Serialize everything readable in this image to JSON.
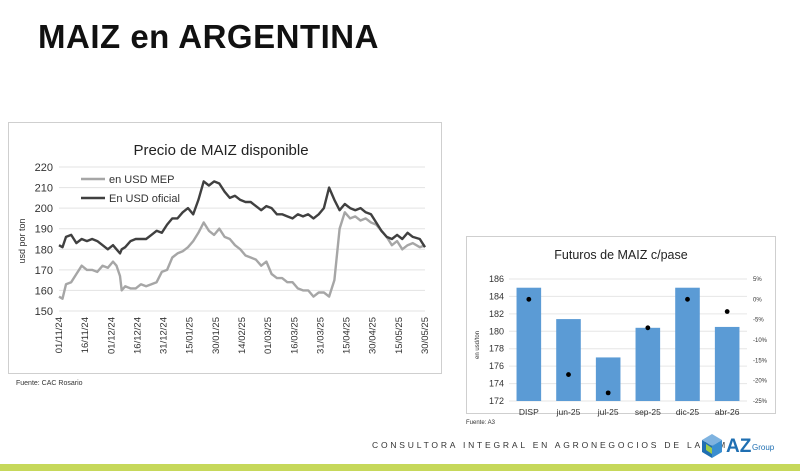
{
  "page": {
    "title": "MAIZ en ARGENTINA",
    "footer": "CONSULTORA INTEGRAL EN AGRONEGOCIOS DE LATAM",
    "logo_text": "AZ",
    "logo_sub": "Group",
    "accent_color": "#c6d85a",
    "logo_color": "#1f6fb2"
  },
  "chart_data": [
    {
      "type": "line",
      "title": "Precio de MAIZ disponible",
      "ylabel": "usd por ton",
      "ylim": [
        150,
        220
      ],
      "yticks": [
        150,
        160,
        170,
        180,
        190,
        200,
        210,
        220
      ],
      "xlabels": [
        "01/11/24",
        "16/11/24",
        "01/12/24",
        "16/12/24",
        "31/12/24",
        "15/01/25",
        "30/01/25",
        "14/02/25",
        "01/03/25",
        "16/03/25",
        "31/03/25",
        "15/04/25",
        "30/04/25",
        "15/05/25",
        "30/05/25"
      ],
      "x_start": "2024-11-01",
      "x_end": "2025-05-30",
      "grid": true,
      "legend": "top-left",
      "source": "Fuente: CAC Rosario",
      "series": [
        {
          "name": "en USD MEP",
          "color": "#a6a6a6",
          "points": [
            [
              "2024-11-01",
              157
            ],
            [
              "2024-11-03",
              156
            ],
            [
              "2024-11-05",
              163
            ],
            [
              "2024-11-08",
              164
            ],
            [
              "2024-11-11",
              168
            ],
            [
              "2024-11-14",
              172
            ],
            [
              "2024-11-17",
              170
            ],
            [
              "2024-11-20",
              170
            ],
            [
              "2024-11-23",
              169
            ],
            [
              "2024-11-26",
              172
            ],
            [
              "2024-11-29",
              171
            ],
            [
              "2024-12-02",
              174
            ],
            [
              "2024-12-04",
              172
            ],
            [
              "2024-12-06",
              167
            ],
            [
              "2024-12-07",
              160
            ],
            [
              "2024-12-09",
              162
            ],
            [
              "2024-12-12",
              161
            ],
            [
              "2024-12-15",
              161
            ],
            [
              "2024-12-18",
              163
            ],
            [
              "2024-12-21",
              162
            ],
            [
              "2024-12-24",
              163
            ],
            [
              "2024-12-27",
              164
            ],
            [
              "2024-12-30",
              169
            ],
            [
              "2025-01-02",
              170
            ],
            [
              "2025-01-05",
              176
            ],
            [
              "2025-01-08",
              178
            ],
            [
              "2025-01-11",
              179
            ],
            [
              "2025-01-14",
              181
            ],
            [
              "2025-01-17",
              184
            ],
            [
              "2025-01-20",
              188
            ],
            [
              "2025-01-23",
              193
            ],
            [
              "2025-01-26",
              189
            ],
            [
              "2025-01-29",
              187
            ],
            [
              "2025-02-01",
              190
            ],
            [
              "2025-02-04",
              186
            ],
            [
              "2025-02-07",
              185
            ],
            [
              "2025-02-10",
              182
            ],
            [
              "2025-02-13",
              180
            ],
            [
              "2025-02-16",
              177
            ],
            [
              "2025-02-19",
              176
            ],
            [
              "2025-02-22",
              175
            ],
            [
              "2025-02-25",
              172
            ],
            [
              "2025-02-28",
              174
            ],
            [
              "2025-03-03",
              168
            ],
            [
              "2025-03-06",
              166
            ],
            [
              "2025-03-09",
              166
            ],
            [
              "2025-03-12",
              164
            ],
            [
              "2025-03-15",
              164
            ],
            [
              "2025-03-18",
              161
            ],
            [
              "2025-03-21",
              160
            ],
            [
              "2025-03-24",
              160
            ],
            [
              "2025-03-27",
              157
            ],
            [
              "2025-03-30",
              159
            ],
            [
              "2025-04-02",
              159
            ],
            [
              "2025-04-05",
              157
            ],
            [
              "2025-04-08",
              165
            ],
            [
              "2025-04-11",
              190
            ],
            [
              "2025-04-14",
              198
            ],
            [
              "2025-04-17",
              195
            ],
            [
              "2025-04-20",
              196
            ],
            [
              "2025-04-23",
              194
            ],
            [
              "2025-04-26",
              195
            ],
            [
              "2025-04-29",
              193
            ],
            [
              "2025-05-02",
              192
            ],
            [
              "2025-05-05",
              189
            ],
            [
              "2025-05-08",
              186
            ],
            [
              "2025-05-11",
              182
            ],
            [
              "2025-05-14",
              184
            ],
            [
              "2025-05-17",
              180
            ],
            [
              "2025-05-20",
              182
            ],
            [
              "2025-05-23",
              183
            ],
            [
              "2025-05-27",
              181
            ],
            [
              "2025-05-30",
              182
            ]
          ]
        },
        {
          "name": "En USD oficial",
          "color": "#404040",
          "points": [
            [
              "2024-11-01",
              182
            ],
            [
              "2024-11-03",
              181
            ],
            [
              "2024-11-05",
              186
            ],
            [
              "2024-11-08",
              187
            ],
            [
              "2024-11-11",
              183
            ],
            [
              "2024-11-14",
              185
            ],
            [
              "2024-11-17",
              184
            ],
            [
              "2024-11-20",
              185
            ],
            [
              "2024-11-23",
              184
            ],
            [
              "2024-11-26",
              182
            ],
            [
              "2024-11-29",
              180
            ],
            [
              "2024-12-02",
              182
            ],
            [
              "2024-12-04",
              180
            ],
            [
              "2024-12-06",
              178
            ],
            [
              "2024-12-07",
              180
            ],
            [
              "2024-12-09",
              181
            ],
            [
              "2024-12-12",
              184
            ],
            [
              "2024-12-15",
              185
            ],
            [
              "2024-12-18",
              185
            ],
            [
              "2024-12-21",
              185
            ],
            [
              "2024-12-24",
              187
            ],
            [
              "2024-12-27",
              189
            ],
            [
              "2024-12-30",
              188
            ],
            [
              "2025-01-02",
              192
            ],
            [
              "2025-01-05",
              195
            ],
            [
              "2025-01-08",
              195
            ],
            [
              "2025-01-11",
              198
            ],
            [
              "2025-01-14",
              200
            ],
            [
              "2025-01-17",
              197
            ],
            [
              "2025-01-20",
              204
            ],
            [
              "2025-01-23",
              213
            ],
            [
              "2025-01-26",
              211
            ],
            [
              "2025-01-29",
              213
            ],
            [
              "2025-02-01",
              212
            ],
            [
              "2025-02-04",
              208
            ],
            [
              "2025-02-07",
              205
            ],
            [
              "2025-02-10",
              206
            ],
            [
              "2025-02-13",
              204
            ],
            [
              "2025-02-16",
              203
            ],
            [
              "2025-02-19",
              203
            ],
            [
              "2025-02-22",
              201
            ],
            [
              "2025-02-25",
              199
            ],
            [
              "2025-02-28",
              201
            ],
            [
              "2025-03-03",
              200
            ],
            [
              "2025-03-06",
              197
            ],
            [
              "2025-03-09",
              197
            ],
            [
              "2025-03-12",
              196
            ],
            [
              "2025-03-15",
              195
            ],
            [
              "2025-03-18",
              197
            ],
            [
              "2025-03-21",
              196
            ],
            [
              "2025-03-24",
              197
            ],
            [
              "2025-03-27",
              195
            ],
            [
              "2025-03-30",
              197
            ],
            [
              "2025-04-02",
              200
            ],
            [
              "2025-04-05",
              210
            ],
            [
              "2025-04-08",
              204
            ],
            [
              "2025-04-11",
              199
            ],
            [
              "2025-04-14",
              202
            ],
            [
              "2025-04-17",
              200
            ],
            [
              "2025-04-20",
              199
            ],
            [
              "2025-04-23",
              200
            ],
            [
              "2025-04-26",
              198
            ],
            [
              "2025-04-29",
              197
            ],
            [
              "2025-05-02",
              193
            ],
            [
              "2025-05-05",
              189
            ],
            [
              "2025-05-08",
              186
            ],
            [
              "2025-05-11",
              185
            ],
            [
              "2025-05-14",
              187
            ],
            [
              "2025-05-17",
              185
            ],
            [
              "2025-05-20",
              188
            ],
            [
              "2025-05-23",
              186
            ],
            [
              "2025-05-27",
              185
            ],
            [
              "2025-05-30",
              181
            ]
          ]
        }
      ]
    },
    {
      "type": "bar",
      "title": "Futuros de MAIZ c/pase",
      "ylabel": "en usd/ton",
      "ylim": [
        172,
        186
      ],
      "yticks": [
        172,
        174,
        176,
        178,
        180,
        182,
        184,
        186
      ],
      "y2lim": [
        -25,
        5
      ],
      "y2ticks": [
        "5%",
        "0%",
        "-5%",
        "-10%",
        "-15%",
        "-20%",
        "-25%"
      ],
      "categories": [
        "DISP",
        "jun-25",
        "jul-25",
        "sep-25",
        "dic-25",
        "abr-26"
      ],
      "grid": true,
      "source": "Fuente: A3",
      "series": [
        {
          "color": "#5b9bd5",
          "values": [
            185,
            181.4,
            177,
            180.4,
            185,
            180.5
          ]
        },
        {
          "type": "scatter",
          "axis": "right",
          "color": "#000000",
          "values": [
            0,
            -18.5,
            -23,
            -7,
            0,
            -3
          ]
        }
      ]
    }
  ]
}
